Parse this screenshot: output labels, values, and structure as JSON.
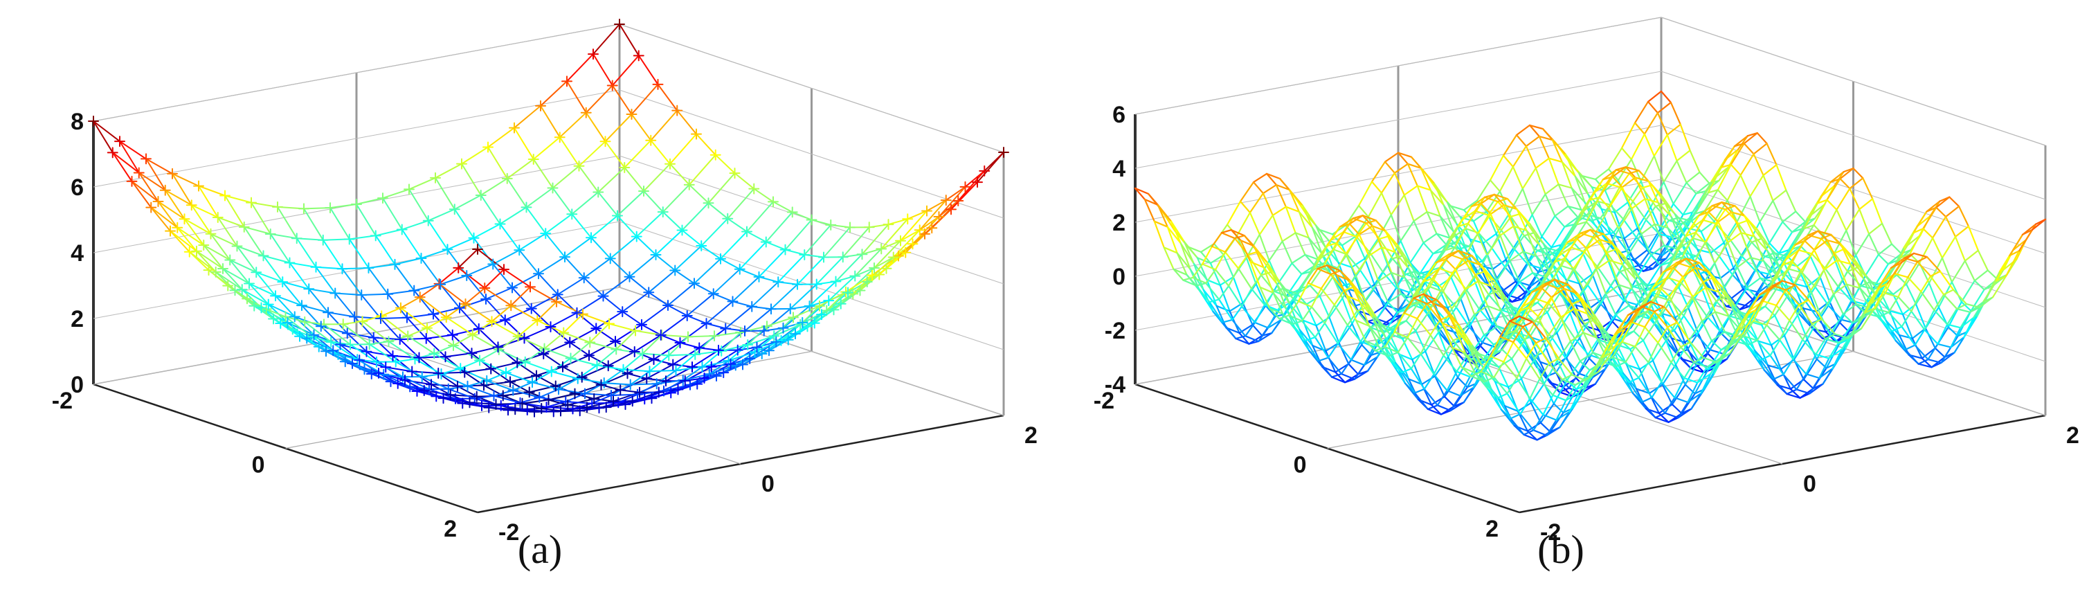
{
  "chart_data": [
    {
      "type": "surface",
      "panel_label": "(a)",
      "function": "x^2 + y^2 (sphere)",
      "x_ticks": [
        "-2",
        "0",
        "2"
      ],
      "y_ticks": [
        "-2",
        "0",
        "2"
      ],
      "z_ticks": [
        "0",
        "2",
        "4",
        "6",
        "8"
      ],
      "xlim": [
        -2,
        2
      ],
      "ylim": [
        -2,
        2
      ],
      "zlim": [
        0,
        8
      ],
      "colormap": "jet",
      "grid": true,
      "style": "mesh with plus markers"
    },
    {
      "type": "surface",
      "panel_label": "(b)",
      "function": "rastrigin-like oscillating surface",
      "x_ticks": [
        "-2",
        "0",
        "2"
      ],
      "y_ticks": [
        "-2",
        "0",
        "2"
      ],
      "z_ticks": [
        "-4",
        "-2",
        "0",
        "2",
        "4",
        "6"
      ],
      "xlim": [
        -2,
        2
      ],
      "ylim": [
        -2,
        2
      ],
      "zlim": [
        -4,
        6
      ],
      "colormap": "jet",
      "grid": true,
      "style": "mesh lines"
    }
  ]
}
